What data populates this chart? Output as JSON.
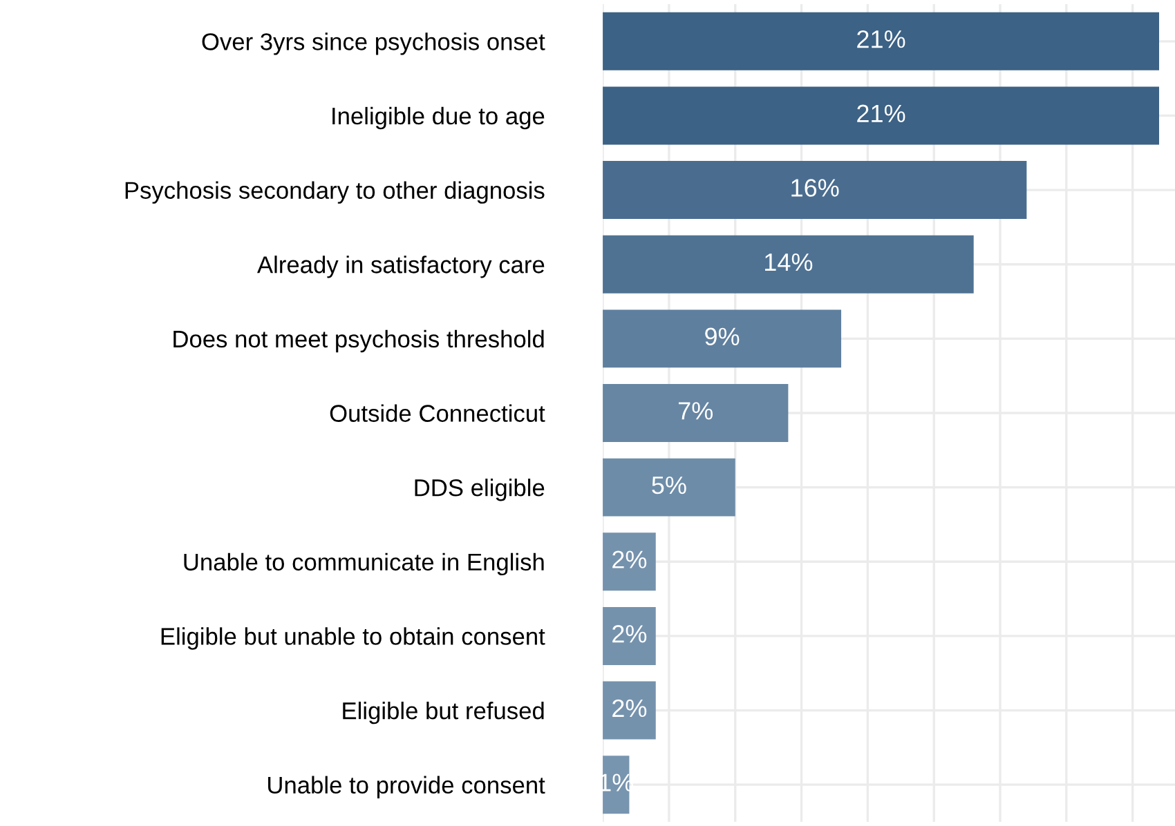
{
  "chart_data": {
    "type": "bar",
    "orientation": "horizontal",
    "categories": [
      "Over 3yrs since psychosis onset",
      "Ineligible due to age",
      "Psychosis secondary to other diagnosis",
      "Already in satisfactory care",
      "Does not meet psychosis threshold",
      "Outside Connecticut",
      "DDS eligible",
      "Unable to communicate in English",
      "Eligible but unable to obtain consent",
      "Eligible but refused",
      "Unable to provide consent"
    ],
    "values": [
      21,
      21,
      16,
      14,
      9,
      7,
      5,
      2,
      2,
      2,
      1
    ],
    "value_labels": [
      "21%",
      "21%",
      "16%",
      "14%",
      "9%",
      "7%",
      "5%",
      "2%",
      "2%",
      "2%",
      "1%"
    ],
    "colors": [
      "#3c6285",
      "#3c6285",
      "#4a6d8f",
      "#4f7293",
      "#5f7f9e",
      "#6686a3",
      "#6d8ca8",
      "#7592ad",
      "#7592ad",
      "#7592ad",
      "#7895af"
    ],
    "xlim": [
      0,
      21.6
    ],
    "xticks": [
      {
        "value": 0,
        "label": null
      },
      {
        "value": 2.5,
        "label": null
      },
      {
        "value": 5,
        "label": null
      },
      {
        "value": 7.5,
        "label": null
      },
      {
        "value": 10,
        "label": null
      },
      {
        "value": 12.5,
        "label": null
      },
      {
        "value": 15,
        "label": null
      },
      {
        "value": 17.5,
        "label": null
      },
      {
        "value": 20,
        "label": null
      }
    ],
    "tick_labels": "y",
    "grid": true
  }
}
